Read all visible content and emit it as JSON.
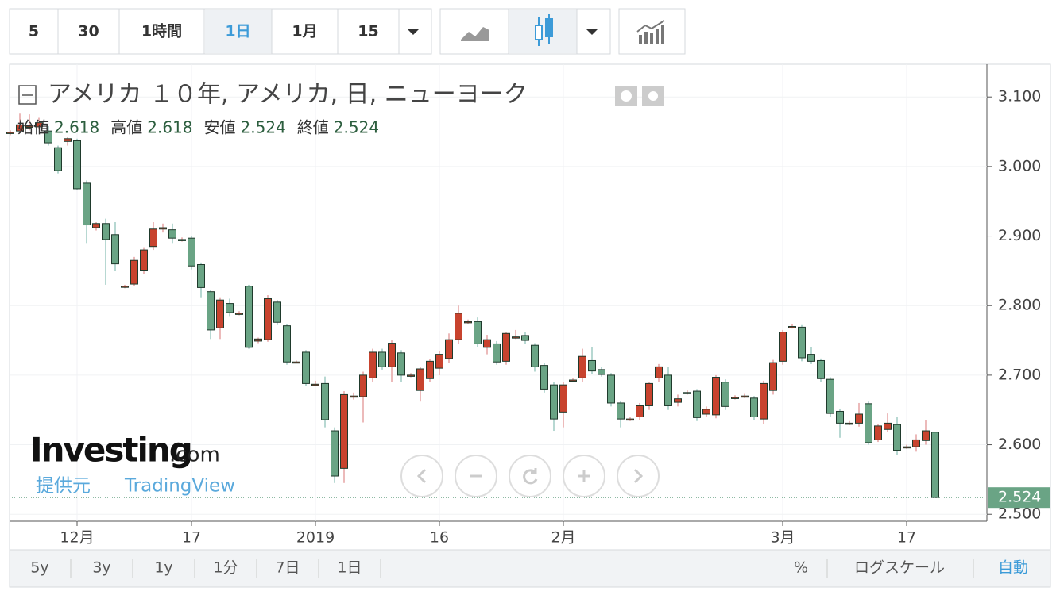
{
  "toolbar": {
    "intervals": [
      "5",
      "30",
      "1時間",
      "1日",
      "1月",
      "15"
    ],
    "active": 3
  },
  "chart_data": {
    "type": "candlestick",
    "title": "アメリカ １０年, アメリカ, 日, ニューヨーク",
    "legend": [
      {
        "name": "始値",
        "value": 2.618
      },
      {
        "name": "高値",
        "value": 2.618
      },
      {
        "name": "安値",
        "value": 2.524
      },
      {
        "name": "終値",
        "value": 2.524
      }
    ],
    "up_color": "#c8432e",
    "down_color": "#6aa485",
    "up_wick": "#e6a3a3",
    "down_wick": "#9fcbc2",
    "edge_color": "#1f3a2c",
    "ylim": [
      2.49,
      3.147
    ],
    "yticks": [
      {
        "value": 3.1,
        "label": "3.100"
      },
      {
        "value": 3.0,
        "label": "3.000"
      },
      {
        "value": 2.9,
        "label": "2.900"
      },
      {
        "value": 2.8,
        "label": "2.800"
      },
      {
        "value": 2.7,
        "label": "2.700"
      },
      {
        "value": 2.6,
        "label": "2.600"
      },
      {
        "value": 2.5,
        "label": "2.500"
      }
    ],
    "last_price": 2.524,
    "grid": true,
    "categories": [
      null,
      null,
      null,
      null,
      null,
      null,
      null,
      "12月",
      null,
      null,
      null,
      null,
      null,
      null,
      null,
      null,
      null,
      null,
      null,
      "17",
      null,
      null,
      null,
      null,
      null,
      null,
      null,
      null,
      null,
      null,
      null,
      null,
      "2019",
      null,
      null,
      null,
      null,
      null,
      null,
      null,
      null,
      null,
      null,
      null,
      null,
      "16",
      null,
      null,
      null,
      null,
      null,
      null,
      null,
      null,
      null,
      null,
      null,
      null,
      "2月",
      null,
      null,
      null,
      null,
      null,
      null,
      null,
      null,
      null,
      null,
      null,
      null,
      null,
      null,
      null,
      null,
      null,
      null,
      null,
      null,
      null,
      null,
      "3月",
      null,
      null,
      null,
      null,
      null,
      null,
      null,
      null,
      null,
      null,
      null,
      null,
      "17",
      null,
      null,
      null
    ],
    "ohlc": [
      [
        3.049,
        3.052,
        3.045,
        3.049
      ],
      [
        3.051,
        3.076,
        3.048,
        3.06
      ],
      [
        3.058,
        3.075,
        3.052,
        3.058
      ],
      [
        3.057,
        3.07,
        3.054,
        3.063
      ],
      [
        3.051,
        3.058,
        3.03,
        3.034
      ],
      [
        3.027,
        3.03,
        2.99,
        2.994
      ],
      [
        3.036,
        3.042,
        3.03,
        3.04
      ],
      [
        3.037,
        3.04,
        2.966,
        2.968
      ],
      [
        2.976,
        2.98,
        2.89,
        2.916
      ],
      [
        2.912,
        2.92,
        2.908,
        2.918
      ],
      [
        2.918,
        2.925,
        2.83,
        2.895
      ],
      [
        2.902,
        2.92,
        2.85,
        2.86
      ],
      [
        2.827,
        2.83,
        2.825,
        2.828
      ],
      [
        2.831,
        2.87,
        2.828,
        2.865
      ],
      [
        2.851,
        2.884,
        2.845,
        2.88
      ],
      [
        2.885,
        2.92,
        2.88,
        2.91
      ],
      [
        2.91,
        2.918,
        2.905,
        2.912
      ],
      [
        2.909,
        2.918,
        2.89,
        2.897
      ],
      [
        2.895,
        2.898,
        2.892,
        2.895
      ],
      [
        2.897,
        2.9,
        2.852,
        2.857
      ],
      [
        2.859,
        2.862,
        2.812,
        2.826
      ],
      [
        2.82,
        2.822,
        2.752,
        2.765
      ],
      [
        2.768,
        2.812,
        2.752,
        2.808
      ],
      [
        2.803,
        2.81,
        2.785,
        2.79
      ],
      [
        2.789,
        2.792,
        2.786,
        2.789
      ],
      [
        2.828,
        2.83,
        2.738,
        2.74
      ],
      [
        2.749,
        2.754,
        2.746,
        2.752
      ],
      [
        2.751,
        2.815,
        2.748,
        2.81
      ],
      [
        2.805,
        2.808,
        2.772,
        2.776
      ],
      [
        2.771,
        2.774,
        2.715,
        2.719
      ],
      [
        2.719,
        2.721,
        2.717,
        2.719
      ],
      [
        2.733,
        2.736,
        2.684,
        2.688
      ],
      [
        2.687,
        2.692,
        2.684,
        2.687
      ],
      [
        2.688,
        2.698,
        2.625,
        2.636
      ],
      [
        2.62,
        2.625,
        2.545,
        2.555
      ],
      [
        2.566,
        2.677,
        2.545,
        2.672
      ],
      [
        2.67,
        2.675,
        2.665,
        2.67
      ],
      [
        2.669,
        2.705,
        2.632,
        2.7
      ],
      [
        2.696,
        2.738,
        2.69,
        2.733
      ],
      [
        2.733,
        2.738,
        2.708,
        2.712
      ],
      [
        2.712,
        2.75,
        2.69,
        2.746
      ],
      [
        2.732,
        2.736,
        2.69,
        2.7
      ],
      [
        2.7,
        2.703,
        2.697,
        2.7
      ],
      [
        2.678,
        2.712,
        2.662,
        2.709
      ],
      [
        2.695,
        2.723,
        2.69,
        2.72
      ],
      [
        2.71,
        2.735,
        2.7,
        2.73
      ],
      [
        2.724,
        2.76,
        2.718,
        2.751
      ],
      [
        2.751,
        2.8,
        2.745,
        2.789
      ],
      [
        2.777,
        2.78,
        2.774,
        2.777
      ],
      [
        2.777,
        2.783,
        2.74,
        2.745
      ],
      [
        2.74,
        2.758,
        2.73,
        2.751
      ],
      [
        2.745,
        2.749,
        2.715,
        2.719
      ],
      [
        2.72,
        2.762,
        2.715,
        2.76
      ],
      [
        2.755,
        2.765,
        2.752,
        2.755
      ],
      [
        2.757,
        2.762,
        2.745,
        2.75
      ],
      [
        2.743,
        2.746,
        2.705,
        2.712
      ],
      [
        2.714,
        2.718,
        2.675,
        2.68
      ],
      [
        2.686,
        2.69,
        2.62,
        2.637
      ],
      [
        2.647,
        2.69,
        2.625,
        2.686
      ],
      [
        2.693,
        2.696,
        2.69,
        2.693
      ],
      [
        2.696,
        2.738,
        2.69,
        2.727
      ],
      [
        2.721,
        2.74,
        2.702,
        2.706
      ],
      [
        2.708,
        2.712,
        2.698,
        2.701
      ],
      [
        2.7,
        2.703,
        2.655,
        2.66
      ],
      [
        2.66,
        2.663,
        2.625,
        2.637
      ],
      [
        2.637,
        2.64,
        2.634,
        2.637
      ],
      [
        2.64,
        2.66,
        2.635,
        2.656
      ],
      [
        2.656,
        2.69,
        2.65,
        2.688
      ],
      [
        2.696,
        2.716,
        2.69,
        2.712
      ],
      [
        2.7,
        2.712,
        2.65,
        2.656
      ],
      [
        2.661,
        2.672,
        2.655,
        2.666
      ],
      [
        2.675,
        2.678,
        2.672,
        2.675
      ],
      [
        2.677,
        2.68,
        2.634,
        2.639
      ],
      [
        2.644,
        2.655,
        2.64,
        2.651
      ],
      [
        2.643,
        2.7,
        2.638,
        2.697
      ],
      [
        2.69,
        2.694,
        2.65,
        2.655
      ],
      [
        2.668,
        2.671,
        2.665,
        2.668
      ],
      [
        2.67,
        2.673,
        2.667,
        2.67
      ],
      [
        2.667,
        2.67,
        2.636,
        2.64
      ],
      [
        2.637,
        2.692,
        2.63,
        2.688
      ],
      [
        2.678,
        2.722,
        2.672,
        2.718
      ],
      [
        2.72,
        2.765,
        2.715,
        2.762
      ],
      [
        2.77,
        2.773,
        2.767,
        2.77
      ],
      [
        2.769,
        2.772,
        2.72,
        2.725
      ],
      [
        2.73,
        2.74,
        2.716,
        2.72
      ],
      [
        2.721,
        2.724,
        2.69,
        2.695
      ],
      [
        2.694,
        2.697,
        2.64,
        2.645
      ],
      [
        2.648,
        2.652,
        2.61,
        2.631
      ],
      [
        2.631,
        2.634,
        2.628,
        2.631
      ],
      [
        2.631,
        2.66,
        2.626,
        2.644
      ],
      [
        2.659,
        2.662,
        2.6,
        2.603
      ],
      [
        2.607,
        2.63,
        2.604,
        2.627
      ],
      [
        2.622,
        2.645,
        2.618,
        2.631
      ],
      [
        2.629,
        2.64,
        2.585,
        2.592
      ],
      [
        2.597,
        2.6,
        2.594,
        2.597
      ],
      [
        2.597,
        2.615,
        2.59,
        2.607
      ],
      [
        2.606,
        2.635,
        2.6,
        2.62
      ],
      [
        2.618,
        2.618,
        2.524,
        2.524
      ]
    ]
  },
  "watermark": {
    "brand": "Investing",
    "suffix": ".com",
    "provider_label": "提供元",
    "provider": "TradingView"
  },
  "bottom_bar": {
    "ranges": [
      "5y",
      "3y",
      "1y",
      "1分",
      "7日",
      "1日"
    ],
    "options": [
      "%",
      "ログスケール",
      "自動"
    ]
  }
}
